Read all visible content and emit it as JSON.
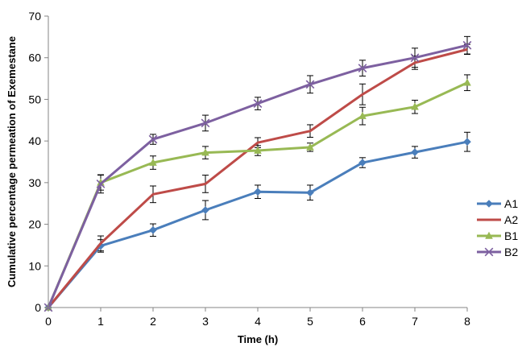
{
  "chart_data": {
    "type": "line",
    "title": "",
    "xlabel": "Time (h)",
    "ylabel": "Cumulative percentage permeation of Exemestane",
    "x": [
      0,
      1,
      2,
      3,
      4,
      5,
      6,
      7,
      8
    ],
    "xlim": [
      0,
      8
    ],
    "ylim": [
      0,
      70
    ],
    "xticks": [
      "0",
      "1",
      "2",
      "3",
      "4",
      "5",
      "6",
      "7",
      "8"
    ],
    "yticks": [
      "0",
      "10",
      "20",
      "30",
      "40",
      "50",
      "60",
      "70"
    ],
    "grid": false,
    "legend_position": "right",
    "series": [
      {
        "name": "A1",
        "color": "#4a7ebb",
        "marker": "diamond",
        "values": [
          0,
          14.8,
          18.6,
          23.4,
          27.8,
          27.6,
          34.8,
          37.3,
          39.8
        ],
        "errors": [
          0,
          1.5,
          1.5,
          2.3,
          1.6,
          1.8,
          1.2,
          1.4,
          2.3
        ]
      },
      {
        "name": "A2",
        "color": "#be4b48",
        "marker": "none",
        "values": [
          0,
          15.4,
          27.2,
          29.7,
          39.6,
          42.4,
          51.2,
          58.8,
          62.0
        ],
        "errors": [
          0,
          1.8,
          2.0,
          2.1,
          1.2,
          1.5,
          2.5,
          1.6,
          1.2
        ]
      },
      {
        "name": "B1",
        "color": "#98b954",
        "marker": "triangle",
        "values": [
          0,
          30.0,
          34.8,
          37.2,
          37.7,
          38.5,
          46.0,
          48.2,
          54.0
        ],
        "errors": [
          0,
          1.8,
          1.6,
          1.5,
          1.2,
          1.0,
          2.1,
          1.6,
          1.9
        ]
      },
      {
        "name": "B2",
        "color": "#7d60a0",
        "marker": "x",
        "values": [
          0,
          29.7,
          40.4,
          44.3,
          49.0,
          53.6,
          57.5,
          60.0,
          63.0
        ],
        "errors": [
          0,
          2.2,
          1.2,
          1.9,
          1.5,
          2.1,
          1.9,
          2.3,
          2.1
        ]
      }
    ]
  }
}
